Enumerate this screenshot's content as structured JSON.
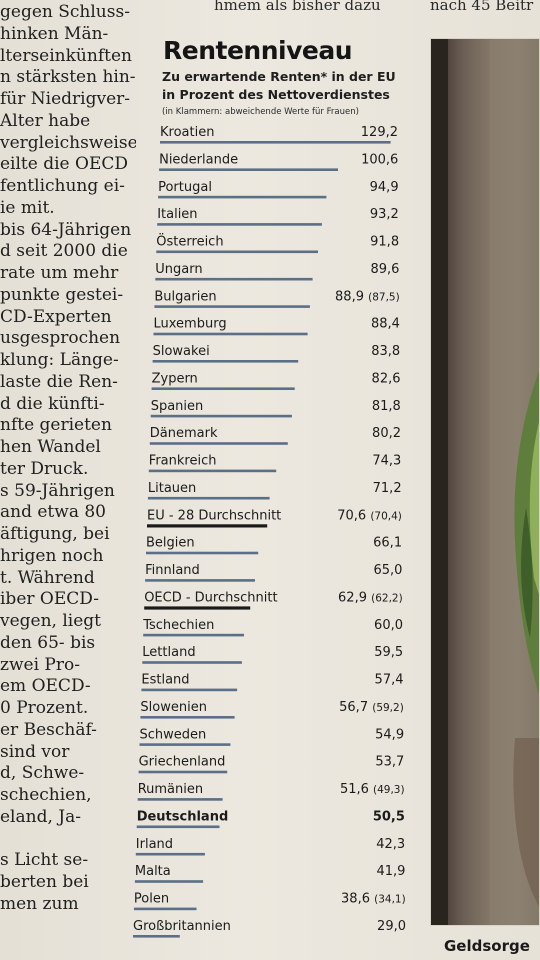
{
  "header_fragments": [
    "hmem als bisher dazu",
    "nach 45 Beitr"
  ],
  "left_column_lines": [
    "gegen Schluss-",
    "hinken Män-",
    "lterseinkünften",
    "n stärksten hin-",
    "für Niedrigver-",
    "Alter habe",
    "vergleichsweise",
    "eilte die OECD",
    "fentlichung ei-",
    "ie mit.",
    "bis 64-Jährigen",
    "d seit 2000 die",
    "rate um mehr",
    "punkte gestei-",
    "CD-Experten",
    "usgesprochen",
    "klung: Länge-",
    "laste die Ren-",
    "d die künfti-",
    "nfte gerieten",
    "hen Wandel",
    "ter Druck.",
    "s 59-Jährigen",
    "and etwa 80",
    "äftigung, bei",
    "hrigen noch",
    "t. Während",
    "iber OECD-",
    "vegen, liegt",
    "den 65- bis",
    "zwei Pro-",
    "em OECD-",
    "0 Prozent.",
    "er Beschäf-",
    "sind vor",
    "d, Schwe-",
    "schechien,",
    "eland, Ja-",
    "",
    "s Licht se-",
    "berten bei",
    "men zum"
  ],
  "photo_caption": "Geldsorge",
  "chart_data": {
    "type": "bar",
    "orientation": "horizontal",
    "title": "Rentenniveau",
    "subtitle_lines": [
      "Zu erwartende Renten* in der EU",
      "in Prozent des Nettoverdienstes"
    ],
    "note": "(in Klammern: abweichende Werte für Frauen)",
    "categories": [
      "Kroatien",
      "Niederlande",
      "Portugal",
      "Italien",
      "Österreich",
      "Ungarn",
      "Bulgarien",
      "Luxemburg",
      "Slowakei",
      "Zypern",
      "Spanien",
      "Dänemark",
      "Frankreich",
      "Litauen",
      "EU - 28 Durchschnitt",
      "Belgien",
      "Finnland",
      "OECD - Durchschnitt",
      "Tschechien",
      "Lettland",
      "Estland",
      "Slowenien",
      "Schweden",
      "Griechenland",
      "Rumänien",
      "Deutschland",
      "Irland",
      "Malta",
      "Polen",
      "Großbritannien"
    ],
    "values": [
      129.2,
      100.6,
      94.9,
      93.2,
      91.8,
      89.6,
      88.9,
      88.4,
      83.8,
      82.6,
      81.8,
      80.2,
      74.3,
      71.2,
      70.6,
      66.1,
      65.0,
      62.9,
      60.0,
      59.5,
      57.4,
      56.7,
      54.9,
      53.7,
      51.6,
      50.5,
      42.3,
      41.9,
      38.6,
      29.0
    ],
    "value_labels": [
      "129,2",
      "100,6",
      "94,9",
      "93,2",
      "91,8",
      "89,6",
      "88,9",
      "88,4",
      "83,8",
      "82,6",
      "81,8",
      "80,2",
      "74,3",
      "71,2",
      "70,6",
      "66,1",
      "65,0",
      "62,9",
      "60,0",
      "59,5",
      "57,4",
      "56,7",
      "54,9",
      "53,7",
      "51,6",
      "50,5",
      "42,3",
      "41,9",
      "38,6",
      "29,0"
    ],
    "female_values": [
      null,
      null,
      null,
      null,
      null,
      null,
      87.5,
      null,
      null,
      null,
      null,
      null,
      null,
      null,
      70.4,
      null,
      null,
      62.2,
      null,
      null,
      null,
      59.2,
      null,
      null,
      49.3,
      null,
      null,
      null,
      34.1,
      null
    ],
    "female_labels": [
      null,
      null,
      null,
      null,
      null,
      null,
      "(87,5)",
      null,
      null,
      null,
      null,
      null,
      null,
      null,
      "(70,4)",
      null,
      null,
      "(62,2)",
      null,
      null,
      null,
      "(59,2)",
      null,
      null,
      "(49,3)",
      null,
      null,
      null,
      "(34,1)",
      null
    ],
    "highlight": [
      "Deutschland"
    ],
    "average_rows": [
      "EU - 28 Durchschnitt",
      "OECD - Durchschnitt"
    ],
    "xlim": [
      0,
      130
    ],
    "colors": {
      "bar": "#5b6f86",
      "average_bar": "#1a1a1a",
      "text": "#1b1b1b"
    }
  }
}
